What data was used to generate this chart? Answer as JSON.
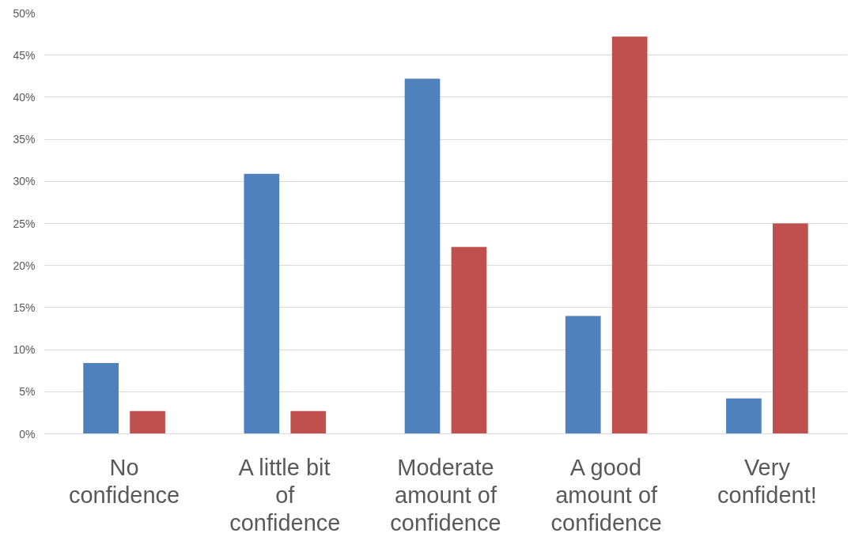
{
  "chart_data": {
    "type": "bar",
    "categories": [
      "No confidence",
      "A little bit of confidence",
      "Moderate amount of confidence",
      "A good amount of confidence",
      "Very confident!"
    ],
    "series": [
      {
        "color": "#4f81bd",
        "values": [
          8.4,
          30.9,
          42.2,
          14.0,
          4.2
        ]
      },
      {
        "color": "#c0504d",
        "values": [
          2.7,
          2.7,
          22.2,
          47.2,
          25.0
        ]
      }
    ],
    "ylim": [
      0,
      50
    ],
    "yticks": [
      {
        "value": 0,
        "label": "0%"
      },
      {
        "value": 5,
        "label": "5%"
      },
      {
        "value": 10,
        "label": "10%"
      },
      {
        "value": 15,
        "label": "15%"
      },
      {
        "value": 20,
        "label": "20%"
      },
      {
        "value": 25,
        "label": "25%"
      },
      {
        "value": 30,
        "label": "30%"
      },
      {
        "value": 35,
        "label": "35%"
      },
      {
        "value": 40,
        "label": "40%"
      },
      {
        "value": 45,
        "label": "45%"
      },
      {
        "value": 50,
        "label": "50%"
      }
    ],
    "grid": "y"
  }
}
